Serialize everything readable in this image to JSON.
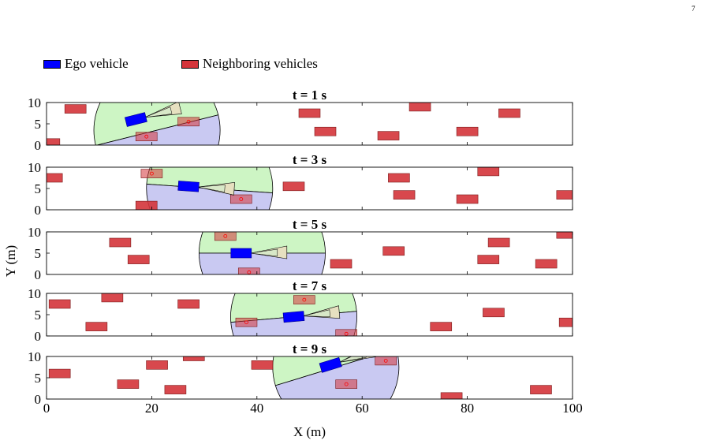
{
  "page_number": "7",
  "legend": [
    {
      "label": "Ego vehicle",
      "color": "#0000ff"
    },
    {
      "label": "Neighboring vehicles",
      "color": "#d4343a"
    }
  ],
  "colors": {
    "ego": "#0000ff",
    "neighbor": "#d4343a",
    "front_region": "#cdf5c4",
    "rear_region": "#c9c9f2",
    "sensor_cone": "#e6e0c0",
    "detected_marker": "#ff0000"
  },
  "chart_data": [
    {
      "type": "scatter",
      "title": "t = 1 s",
      "xlim": [
        0,
        100
      ],
      "ylim": [
        0,
        10
      ],
      "yticks": [
        "0",
        "5",
        "10"
      ],
      "ego": {
        "x": 17,
        "y": 6,
        "heading_deg": 14
      },
      "perception_range": {
        "cx": 21,
        "cy": 3.5,
        "r": 12
      },
      "neighbors": [
        {
          "x": 5.5,
          "y": 8.5
        },
        {
          "x": 0.5,
          "y": 0.5
        },
        {
          "x": 19,
          "y": 2
        },
        {
          "x": 27,
          "y": 5.5
        },
        {
          "x": 50,
          "y": 7.5
        },
        {
          "x": 53,
          "y": 3.2
        },
        {
          "x": 71,
          "y": 9
        },
        {
          "x": 65,
          "y": 2.2
        },
        {
          "x": 80,
          "y": 3.2
        },
        {
          "x": 88,
          "y": 7.5
        }
      ]
    },
    {
      "type": "scatter",
      "title": "t = 3 s",
      "xlim": [
        0,
        100
      ],
      "ylim": [
        0,
        10
      ],
      "yticks": [
        "0",
        "5",
        "10"
      ],
      "ego": {
        "x": 27,
        "y": 5.5,
        "heading_deg": -4
      },
      "perception_range": {
        "cx": 31,
        "cy": 5,
        "r": 12
      },
      "neighbors": [
        {
          "x": 1,
          "y": 7.5
        },
        {
          "x": 20,
          "y": 8.5
        },
        {
          "x": 19,
          "y": 1
        },
        {
          "x": 37,
          "y": 2.5
        },
        {
          "x": 47,
          "y": 5.5
        },
        {
          "x": 67,
          "y": 7.5
        },
        {
          "x": 68,
          "y": 3.5
        },
        {
          "x": 80,
          "y": 2.5
        },
        {
          "x": 84,
          "y": 9
        },
        {
          "x": 99,
          "y": 3.5
        }
      ]
    },
    {
      "type": "scatter",
      "title": "t = 5 s",
      "xlim": [
        0,
        100
      ],
      "ylim": [
        0,
        10
      ],
      "yticks": [
        "0",
        "5",
        "10"
      ],
      "ego": {
        "x": 37,
        "y": 5,
        "heading_deg": 0
      },
      "perception_range": {
        "cx": 41,
        "cy": 5,
        "r": 12
      },
      "neighbors": [
        {
          "x": 14,
          "y": 7.5
        },
        {
          "x": 17.5,
          "y": 3.5
        },
        {
          "x": 34,
          "y": 9
        },
        {
          "x": 38.5,
          "y": 0.5
        },
        {
          "x": 56,
          "y": 2.5
        },
        {
          "x": 66,
          "y": 5.5
        },
        {
          "x": 86,
          "y": 7.5
        },
        {
          "x": 84,
          "y": 3.5
        },
        {
          "x": 95,
          "y": 2.5
        },
        {
          "x": 99,
          "y": 9.5
        }
      ]
    },
    {
      "type": "scatter",
      "title": "t = 7 s",
      "xlim": [
        0,
        100
      ],
      "ylim": [
        0,
        10
      ],
      "yticks": [
        "0",
        "5",
        "10"
      ],
      "ego": {
        "x": 47,
        "y": 4.5,
        "heading_deg": 5
      },
      "perception_range": {
        "cx": 47,
        "cy": 4.5,
        "r": 12
      },
      "neighbors": [
        {
          "x": 2.5,
          "y": 7.5
        },
        {
          "x": 12.5,
          "y": 9
        },
        {
          "x": 9.5,
          "y": 2.2
        },
        {
          "x": 27,
          "y": 7.5
        },
        {
          "x": 38,
          "y": 3.2
        },
        {
          "x": 49,
          "y": 8.5
        },
        {
          "x": 57,
          "y": 0.5
        },
        {
          "x": 75,
          "y": 2.2
        },
        {
          "x": 85,
          "y": 5.5
        },
        {
          "x": 99.5,
          "y": 3.2
        }
      ]
    },
    {
      "type": "scatter",
      "title": "t = 9 s",
      "xlim": [
        0,
        100
      ],
      "ylim": [
        0,
        10
      ],
      "xticks": [
        "0",
        "20",
        "40",
        "60",
        "80",
        "100"
      ],
      "yticks": [
        "0",
        "5",
        "10"
      ],
      "xlabel": "X (m)",
      "ego": {
        "x": 54,
        "y": 8,
        "heading_deg": 17
      },
      "perception_range": {
        "cx": 55,
        "cy": 7.5,
        "r": 12
      },
      "neighbors": [
        {
          "x": 2.5,
          "y": 6
        },
        {
          "x": 15.5,
          "y": 3.5
        },
        {
          "x": 21,
          "y": 8
        },
        {
          "x": 24.5,
          "y": 2.2
        },
        {
          "x": 28,
          "y": 10
        },
        {
          "x": 41,
          "y": 8
        },
        {
          "x": 57,
          "y": 3.5
        },
        {
          "x": 64.5,
          "y": 9
        },
        {
          "x": 77,
          "y": 0.5
        },
        {
          "x": 94,
          "y": 2.2
        }
      ]
    }
  ],
  "shared_ylabel": "Y (m)"
}
